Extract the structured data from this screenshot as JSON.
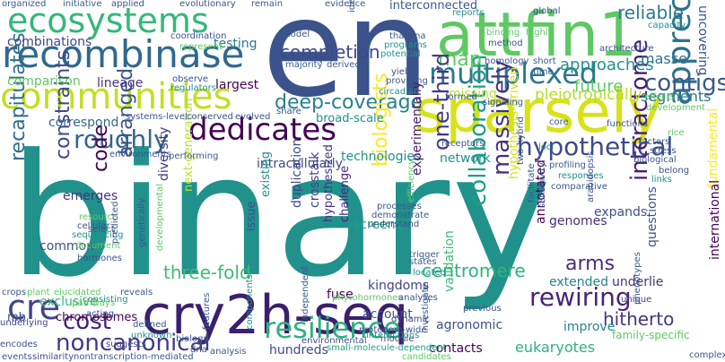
{
  "wordcloud": {
    "background": "#ffffff",
    "palette": [
      "#440154",
      "#3b528b",
      "#21918c",
      "#5ec962",
      "#fde725"
    ],
    "words": [
      {
        "text": "binary",
        "color": "#21918c"
      },
      {
        "text": "en",
        "color": "#3b528b"
      },
      {
        "text": "sparsely",
        "color": "#d8e219"
      },
      {
        "text": "cry2h-seq",
        "color": "#3b1f6e"
      },
      {
        "text": "attfin1",
        "color": "#5ec962"
      },
      {
        "text": "recombinase",
        "color": "#31688e"
      },
      {
        "text": "ecosystems",
        "color": "#35b779"
      },
      {
        "text": "communities",
        "color": "#c2df23"
      },
      {
        "text": "dedicates",
        "color": "#440154"
      },
      {
        "text": "multiplexed",
        "color": "#2a788e"
      },
      {
        "text": "appreciated",
        "color": "#2c728e"
      },
      {
        "text": "resilience",
        "color": "#2cb17e"
      },
      {
        "text": "rewiring",
        "color": "#482475"
      },
      {
        "text": "noncanonical",
        "color": "#443a83"
      },
      {
        "text": "cre",
        "color": "#414487"
      },
      {
        "text": "cost",
        "color": "#482173"
      },
      {
        "text": "hypothetical",
        "color": "#3e4a89"
      },
      {
        "text": "collaboration",
        "color": "#1f9e89"
      },
      {
        "text": "roughly",
        "color": "#31688e"
      },
      {
        "text": "deep-coverage",
        "color": "#27808e"
      },
      {
        "text": "map",
        "color": "#5ec962"
      },
      {
        "text": "contigs",
        "color": "#38598c"
      },
      {
        "text": "massively",
        "color": "#46327e"
      },
      {
        "text": "interactome",
        "color": "#481f70"
      },
      {
        "text": "one-third",
        "color": "#443983"
      },
      {
        "text": "biologists",
        "color": "#fde725"
      },
      {
        "text": "constraints",
        "color": "#3f4889"
      },
      {
        "text": "recapitulates",
        "color": "#2e6e8e"
      },
      {
        "text": "arranged",
        "color": "#3b528b"
      },
      {
        "text": "code",
        "color": "#440154"
      },
      {
        "text": "three-fold",
        "color": "#3dbc74"
      },
      {
        "text": "centromere",
        "color": "#2fb47c"
      },
      {
        "text": "hitherto",
        "color": "#453781"
      },
      {
        "text": "arms",
        "color": "#472d7b"
      },
      {
        "text": "reliable",
        "color": "#2a788e"
      },
      {
        "text": "completion",
        "color": "#3e4a89"
      },
      {
        "text": "approaches",
        "color": "#20928c"
      },
      {
        "text": "future",
        "color": "#5ec962"
      },
      {
        "text": "masse",
        "color": "#2d718e"
      },
      {
        "text": "segments",
        "color": "#2c738e"
      },
      {
        "text": "pleiotropically",
        "color": "#b5de2b"
      },
      {
        "text": "comparison",
        "color": "#5ec962"
      },
      {
        "text": "combinations",
        "color": "#414487"
      },
      {
        "text": "testing",
        "color": "#2a788e"
      },
      {
        "text": "lineage",
        "color": "#46337f"
      },
      {
        "text": "largest",
        "color": "#440154"
      },
      {
        "text": "missing",
        "color": "#bddf26"
      },
      {
        "text": "correspond",
        "color": "#31688e"
      },
      {
        "text": "emerges",
        "color": "#46327e"
      },
      {
        "text": "common",
        "color": "#3b528b"
      },
      {
        "text": "exclusive",
        "color": "#35b779"
      },
      {
        "text": "chromosomes",
        "color": "#440154"
      },
      {
        "text": "mb",
        "color": "#3b528b"
      },
      {
        "text": "technologies",
        "color": "#20928c"
      },
      {
        "text": "intracellularly",
        "color": "#3e4a89"
      },
      {
        "text": "network",
        "color": "#21918c"
      },
      {
        "text": "experimentally",
        "color": "#481b6d"
      },
      {
        "text": "screens",
        "color": "#1fa187"
      },
      {
        "text": "expands",
        "color": "#3b528b"
      },
      {
        "text": "genomes",
        "color": "#472c7a"
      },
      {
        "text": "annotated",
        "color": "#440154"
      },
      {
        "text": "extended",
        "color": "#26828e"
      },
      {
        "text": "improve",
        "color": "#25858e"
      },
      {
        "text": "underlie",
        "color": "#46307e"
      },
      {
        "text": "questions",
        "color": "#3b528b"
      },
      {
        "text": "eukaryotes",
        "color": "#2db27d"
      },
      {
        "text": "contacts",
        "color": "#440154"
      },
      {
        "text": "agronomic",
        "color": "#3b528b"
      },
      {
        "text": "account",
        "color": "#38598c"
      },
      {
        "text": "hundreds",
        "color": "#3e4a89"
      },
      {
        "text": "fuse",
        "color": "#440154"
      },
      {
        "text": "kingdoms",
        "color": "#414487"
      },
      {
        "text": "validation",
        "color": "#3dbc74"
      },
      {
        "text": "hypothesis-driven",
        "color": "#d5e21a"
      },
      {
        "text": "fundamental",
        "color": "#fde725"
      },
      {
        "text": "international",
        "color": "#440154"
      },
      {
        "text": "uncovering",
        "color": "#3b528b"
      },
      {
        "text": "interconnected",
        "color": "#38598c"
      },
      {
        "text": "crosstalk",
        "color": "#414487"
      },
      {
        "text": "duplication",
        "color": "#3e4a89"
      },
      {
        "text": "hypothesized",
        "color": "#463480"
      },
      {
        "text": "challenge",
        "color": "#482878"
      },
      {
        "text": "issue",
        "color": "#3b528b"
      },
      {
        "text": "existing",
        "color": "#21918c"
      },
      {
        "text": "next-generation",
        "color": "#b8de29"
      },
      {
        "text": "diversity",
        "color": "#46327e"
      },
      {
        "text": "developmental",
        "color": "#5ec962"
      },
      {
        "text": "broad-scale",
        "color": "#21918c"
      },
      {
        "text": "proteome-wide",
        "color": "#3b528b"
      },
      {
        "text": "small-molecule-dependent",
        "color": "#1fa187"
      },
      {
        "text": "nontranscription-mediated",
        "color": "#38598c"
      },
      {
        "text": "similarity",
        "color": "#3e4a89"
      },
      {
        "text": "sequencing",
        "color": "#21918c"
      },
      {
        "text": "encodes",
        "color": "#3b528b"
      },
      {
        "text": "events",
        "color": "#38598c"
      },
      {
        "text": "underlying",
        "color": "#414487"
      },
      {
        "text": "crops",
        "color": "#3b528b"
      },
      {
        "text": "plant",
        "color": "#5ec962"
      },
      {
        "text": "consisting",
        "color": "#21918c"
      },
      {
        "text": "elucidated",
        "color": "#5ec962"
      },
      {
        "text": "acting",
        "color": "#3b528b"
      },
      {
        "text": "pathways",
        "color": "#5ec962"
      },
      {
        "text": "suggests",
        "color": "#3e4a89"
      },
      {
        "text": "reveals",
        "color": "#38598c"
      },
      {
        "text": "defined",
        "color": "#38598c"
      },
      {
        "text": "unknown",
        "color": "#21918c"
      },
      {
        "text": "biology",
        "color": "#38598c"
      },
      {
        "text": "dna",
        "color": "#3b528b"
      },
      {
        "text": "analysis",
        "color": "#38598c"
      },
      {
        "text": "features",
        "color": "#38598c"
      },
      {
        "text": "components",
        "color": "#21918c"
      },
      {
        "text": "phytohormones",
        "color": "#5ec962"
      },
      {
        "text": "analyses",
        "color": "#3b528b"
      },
      {
        "text": "dynamic",
        "color": "#414487"
      },
      {
        "text": "module",
        "color": "#3e4a89"
      },
      {
        "text": "interactions",
        "color": "#21918c"
      },
      {
        "text": "environmental",
        "color": "#3b528b"
      },
      {
        "text": "candidates",
        "color": "#5ec962"
      },
      {
        "text": "independent",
        "color": "#38598c"
      },
      {
        "text": "investigate",
        "color": "#38598c"
      },
      {
        "text": "previous",
        "color": "#3b528b"
      },
      {
        "text": "unique",
        "color": "#414487"
      },
      {
        "text": "phenotypes",
        "color": "#38598c"
      },
      {
        "text": "family-specific",
        "color": "#5ec962"
      },
      {
        "text": "complex",
        "color": "#38598c"
      },
      {
        "text": "organized",
        "color": "#38598c"
      },
      {
        "text": "initiative",
        "color": "#38598c"
      },
      {
        "text": "applied",
        "color": "#3b528b"
      },
      {
        "text": "evolutionary",
        "color": "#3b528b"
      },
      {
        "text": "remain",
        "color": "#38598c"
      },
      {
        "text": "evidence",
        "color": "#38598c"
      },
      {
        "text": "model",
        "color": "#38598c"
      },
      {
        "text": "identify",
        "color": "#38598c"
      },
      {
        "text": "thaliana",
        "color": "#38598c"
      },
      {
        "text": "programs",
        "color": "#21918c"
      },
      {
        "text": "potential",
        "color": "#21918c"
      },
      {
        "text": "coordination",
        "color": "#3b528b"
      },
      {
        "text": "represent",
        "color": "#5ec962"
      },
      {
        "text": "homology",
        "color": "#3b528b"
      },
      {
        "text": "short",
        "color": "#38598c"
      },
      {
        "text": "time",
        "color": "#38598c"
      },
      {
        "text": "architecture",
        "color": "#3b528b"
      },
      {
        "text": "capacity",
        "color": "#21918c"
      },
      {
        "text": "global",
        "color": "#3b528b"
      },
      {
        "text": "reports",
        "color": "#21918c"
      },
      {
        "text": "method",
        "color": "#3b528b"
      },
      {
        "text": "binding",
        "color": "#5ec962"
      },
      {
        "text": "highly",
        "color": "#5ec962"
      },
      {
        "text": "majority",
        "color": "#38598c"
      },
      {
        "text": "derived",
        "color": "#38598c"
      },
      {
        "text": "yield",
        "color": "#3b528b"
      },
      {
        "text": "providing",
        "color": "#38598c"
      },
      {
        "text": "signaling",
        "color": "#38598c"
      },
      {
        "text": "circadian",
        "color": "#21918c"
      },
      {
        "text": "formed",
        "color": "#3b528b"
      },
      {
        "text": "development",
        "color": "#5ec962"
      },
      {
        "text": "observe",
        "color": "#38598c"
      },
      {
        "text": "regulators",
        "color": "#21918c"
      },
      {
        "text": "effects",
        "color": "#5ec962"
      },
      {
        "text": "evolved",
        "color": "#3b528b"
      },
      {
        "text": "conserved",
        "color": "#3b528b"
      },
      {
        "text": "systems-level",
        "color": "#38598c"
      },
      {
        "text": "share",
        "color": "#38598c"
      },
      {
        "text": "receptors",
        "color": "#38598c"
      },
      {
        "text": "two-hybrid",
        "color": "#3b528b"
      },
      {
        "text": "core",
        "color": "#38598c"
      },
      {
        "text": "functions",
        "color": "#3b528b"
      },
      {
        "text": "factors",
        "color": "#38598c"
      },
      {
        "text": "stress",
        "color": "#38598c"
      },
      {
        "text": "biological",
        "color": "#38598c"
      },
      {
        "text": "environments",
        "color": "#38598c"
      },
      {
        "text": "performing",
        "color": "#38598c"
      },
      {
        "text": "resource",
        "color": "#5ec962"
      },
      {
        "text": "cellular",
        "color": "#3b528b"
      },
      {
        "text": "select",
        "color": "#38598c"
      },
      {
        "text": "hormones",
        "color": "#3b528b"
      },
      {
        "text": "predicted",
        "color": "#38598c"
      },
      {
        "text": "genetically",
        "color": "#38598c"
      },
      {
        "text": "document",
        "color": "#5ec962"
      },
      {
        "text": "efficiency",
        "color": "#5ec962"
      },
      {
        "text": "processes",
        "color": "#38598c"
      },
      {
        "text": "demonstrate",
        "color": "#38598c"
      },
      {
        "text": "understand",
        "color": "#3b528b"
      },
      {
        "text": "trigger",
        "color": "#38598c"
      },
      {
        "text": "states",
        "color": "#38598c"
      },
      {
        "text": "located",
        "color": "#21918c"
      },
      {
        "text": "profiling",
        "color": "#38598c"
      },
      {
        "text": "responses",
        "color": "#21918c"
      },
      {
        "text": "comparative",
        "color": "#38598c"
      },
      {
        "text": "arabidopsis",
        "color": "#3b528b"
      },
      {
        "text": "facilitate",
        "color": "#38598c"
      },
      {
        "text": "sensitivity",
        "color": "#38598c"
      },
      {
        "text": "belong",
        "color": "#3b528b"
      },
      {
        "text": "links",
        "color": "#21918c"
      },
      {
        "text": "rice",
        "color": "#5ec962"
      },
      {
        "text": "loci",
        "color": "#21918c"
      }
    ]
  }
}
